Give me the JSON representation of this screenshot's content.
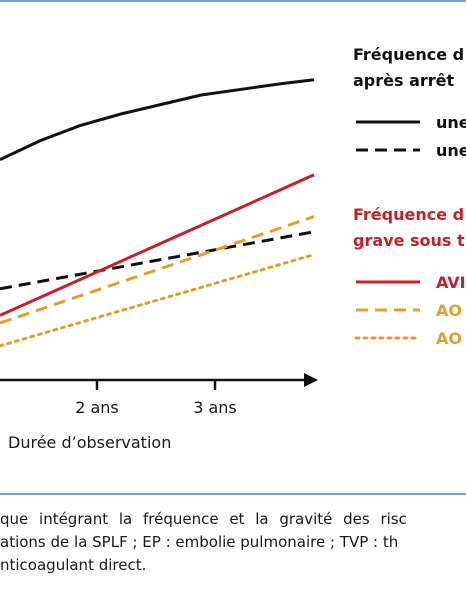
{
  "chart_data": {
    "type": "line",
    "xlabel": "Durée d’observation",
    "x_tick_labels": [
      "2 ans",
      "3 ans"
    ],
    "legend_groups": [
      {
        "title_lines": [
          "Fréquence d",
          "après arrêt"
        ],
        "title_color": "#111111",
        "entries": [
          {
            "label": "une",
            "color": "#111111",
            "style": "solid"
          },
          {
            "label": "une",
            "color": "#111111",
            "style": "dashed"
          }
        ]
      },
      {
        "title_lines": [
          "Fréquence d",
          "grave sous t"
        ],
        "title_color": "#c8202a",
        "entries": [
          {
            "label": "AVI",
            "color": "#c8202a",
            "style": "solid"
          },
          {
            "label": "AO",
            "color": "#e0a030",
            "style": "dashed"
          },
          {
            "label": "AO",
            "color": "#e0a030",
            "style": "dotted"
          }
        ]
      }
    ],
    "series": [
      {
        "color": "#111111",
        "style": "solid",
        "x": [
          0,
          0.5,
          1.0,
          1.5,
          2.0,
          2.5,
          3.0,
          3.5,
          3.9
        ],
        "y": [
          0.58,
          0.63,
          0.67,
          0.7,
          0.725,
          0.75,
          0.765,
          0.78,
          0.79
        ]
      },
      {
        "color": "#111111",
        "style": "dashed",
        "x": [
          0,
          3.9
        ],
        "y": [
          0.24,
          0.39
        ]
      },
      {
        "color": "#c8202a",
        "style": "solid",
        "x": [
          0,
          3.9
        ],
        "y": [
          0.17,
          0.54
        ]
      },
      {
        "color": "#e0a030",
        "style": "dashed",
        "x": [
          0,
          3.9
        ],
        "y": [
          0.15,
          0.43
        ]
      },
      {
        "color": "#e0a030",
        "style": "dotted",
        "x": [
          0,
          3.9
        ],
        "y": [
          0.09,
          0.33
        ]
      }
    ],
    "ylim": [
      0,
      1
    ],
    "colors": {
      "frame_rule": "#6aa8dc",
      "axis": "#111111"
    }
  },
  "caption_lines": [
    "que intégrant la fréquence et la gravité des risc",
    "ations de la SPLF ; EP : embolie pulmonaire ; TVP : th",
    "nticoagulant direct."
  ]
}
